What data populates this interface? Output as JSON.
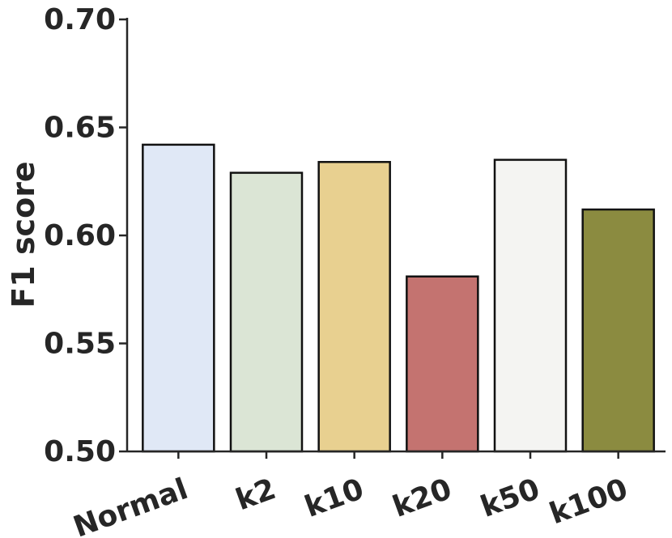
{
  "chart_data": {
    "type": "bar",
    "title": "",
    "xlabel": "",
    "ylabel": "F1 score",
    "categories": [
      "Normal",
      "k2",
      "k10",
      "k20",
      "k50",
      "k100"
    ],
    "values": [
      0.642,
      0.629,
      0.634,
      0.581,
      0.635,
      0.612
    ],
    "colors": [
      "#e0e8f6",
      "#dbe5d5",
      "#e8d090",
      "#c47370",
      "#f4f4f2",
      "#8b8b40"
    ],
    "ylim": [
      0.5,
      0.7
    ],
    "yticks": [
      "0.50",
      "0.55",
      "0.60",
      "0.65",
      "0.70"
    ],
    "grid": false,
    "legend": "none",
    "x_tick_rotation_deg": -20
  }
}
